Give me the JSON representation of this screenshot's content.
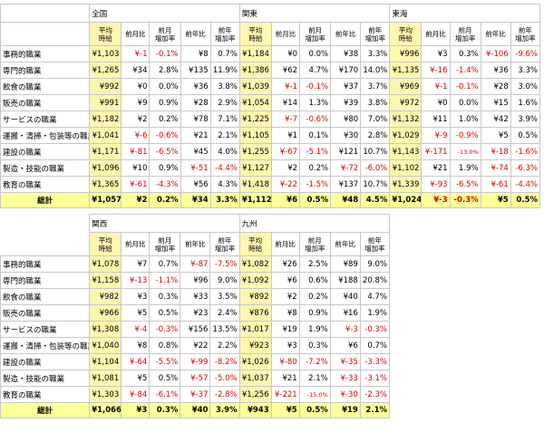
{
  "columns": [
    "平均\n時給",
    "前月比",
    "前月\n増加率",
    "前年比",
    "前年\n増加率"
  ],
  "row_labels": [
    "事務的職業",
    "専門的職業",
    "飲食の職業",
    "販売の職業",
    "サービスの職業",
    "運搬・清掃・包装等の職業",
    "建設の職業",
    "製造・技能の職業",
    "教育の職業"
  ],
  "total_label": "総計",
  "tables": [
    {
      "regions": [
        {
          "name": "全国",
          "rows": [
            [
              "¥1,103",
              "¥-1",
              "-0.1%",
              "¥8",
              "0.7%"
            ],
            [
              "¥1,265",
              "¥34",
              "2.8%",
              "¥135",
              "11.9%"
            ],
            [
              "¥992",
              "¥0",
              "0.0%",
              "¥36",
              "3.8%"
            ],
            [
              "¥991",
              "¥9",
              "0.9%",
              "¥28",
              "2.9%"
            ],
            [
              "¥1,182",
              "¥2",
              "0.2%",
              "¥78",
              "7.1%"
            ],
            [
              "¥1,041",
              "¥-6",
              "-0.6%",
              "¥21",
              "2.1%"
            ],
            [
              "¥1,171",
              "¥-81",
              "-6.5%",
              "¥45",
              "4.0%"
            ],
            [
              "¥1,096",
              "¥10",
              "0.9%",
              "¥-51",
              "-4.4%"
            ],
            [
              "¥1,365",
              "¥-61",
              "-4.3%",
              "¥56",
              "4.3%"
            ]
          ],
          "total": [
            "¥1,057",
            "¥2",
            "0.2%",
            "¥34",
            "3.3%"
          ]
        },
        {
          "name": "関東",
          "rows": [
            [
              "¥1,184",
              "¥0",
              "0.0%",
              "¥38",
              "3.3%"
            ],
            [
              "¥1,386",
              "¥62",
              "4.7%",
              "¥170",
              "14.0%"
            ],
            [
              "¥1,039",
              "¥-1",
              "-0.1%",
              "¥37",
              "3.7%"
            ],
            [
              "¥1,054",
              "¥14",
              "1.3%",
              "¥39",
              "3.8%"
            ],
            [
              "¥1,225",
              "¥-7",
              "-0.6%",
              "¥80",
              "7.0%"
            ],
            [
              "¥1,105",
              "¥1",
              "0.1%",
              "¥30",
              "2.8%"
            ],
            [
              "¥1,255",
              "¥-67",
              "-5.1%",
              "¥121",
              "10.7%"
            ],
            [
              "¥1,127",
              "¥2",
              "0.2%",
              "¥-72",
              "-6.0%"
            ],
            [
              "¥1,418",
              "¥-22",
              "-1.5%",
              "¥137",
              "10.7%"
            ]
          ],
          "total": [
            "¥1,112",
            "¥6",
            "0.5%",
            "¥48",
            "4.5%"
          ]
        },
        {
          "name": "東海",
          "rows": [
            [
              "¥996",
              "¥3",
              "0.3%",
              "¥-106",
              "-9.6%"
            ],
            [
              "¥1,135",
              "¥-16",
              "-1.4%",
              "¥36",
              "3.3%"
            ],
            [
              "¥969",
              "¥-1",
              "-0.1%",
              "¥28",
              "3.0%"
            ],
            [
              "¥972",
              "¥0",
              "0.0%",
              "¥15",
              "1.6%"
            ],
            [
              "¥1,132",
              "¥11",
              "1.0%",
              "¥42",
              "3.9%"
            ],
            [
              "¥1,029",
              "¥-9",
              "-0.9%",
              "¥5",
              "0.5%"
            ],
            [
              "¥1,143",
              "¥-171",
              "-13.0%",
              "¥-18",
              "-1.6%"
            ],
            [
              "¥1,102",
              "¥21",
              "1.9%",
              "¥-74",
              "-6.3%"
            ],
            [
              "¥1,339",
              "¥-93",
              "-6.5%",
              "¥-61",
              "-4.4%"
            ]
          ],
          "total": [
            "¥1,024",
            "¥-3",
            "-0.3%",
            "¥5",
            "0.5%"
          ]
        }
      ]
    },
    {
      "regions": [
        {
          "name": "関西",
          "rows": [
            [
              "¥1,078",
              "¥7",
              "0.7%",
              "¥-87",
              "-7.5%"
            ],
            [
              "¥1,158",
              "¥-13",
              "-1.1%",
              "¥96",
              "9.0%"
            ],
            [
              "¥982",
              "¥3",
              "0.3%",
              "¥33",
              "3.5%"
            ],
            [
              "¥966",
              "¥5",
              "0.5%",
              "¥23",
              "2.4%"
            ],
            [
              "¥1,308",
              "¥-4",
              "-0.3%",
              "¥156",
              "13.5%"
            ],
            [
              "¥1,040",
              "¥8",
              "0.8%",
              "¥22",
              "2.2%"
            ],
            [
              "¥1,104",
              "¥-64",
              "-5.5%",
              "¥-99",
              "-8.2%"
            ],
            [
              "¥1,081",
              "¥5",
              "0.5%",
              "¥-57",
              "-5.0%"
            ],
            [
              "¥1,303",
              "¥-84",
              "-6.1%",
              "¥-37",
              "-2.8%"
            ]
          ],
          "total": [
            "¥1,066",
            "¥3",
            "0.3%",
            "¥40",
            "3.9%"
          ]
        },
        {
          "name": "九州",
          "rows": [
            [
              "¥1,082",
              "¥26",
              "2.5%",
              "¥89",
              "9.0%"
            ],
            [
              "¥1,092",
              "¥6",
              "0.6%",
              "¥188",
              "20.8%"
            ],
            [
              "¥892",
              "¥2",
              "0.2%",
              "¥40",
              "4.7%"
            ],
            [
              "¥876",
              "¥8",
              "0.9%",
              "¥16",
              "1.9%"
            ],
            [
              "¥1,017",
              "¥19",
              "1.9%",
              "¥-3",
              "-0.3%"
            ],
            [
              "¥923",
              "¥3",
              "0.3%",
              "¥6",
              "0.7%"
            ],
            [
              "¥1,026",
              "¥-80",
              "-7.2%",
              "¥-35",
              "-3.3%"
            ],
            [
              "¥1,037",
              "¥21",
              "2.1%",
              "¥-33",
              "-3.1%"
            ],
            [
              "¥1,256",
              "¥-221",
              "-15.0%",
              "¥-30",
              "-2.3%"
            ]
          ],
          "total": [
            "¥943",
            "¥5",
            "0.5%",
            "¥19",
            "2.1%"
          ]
        }
      ]
    }
  ]
}
